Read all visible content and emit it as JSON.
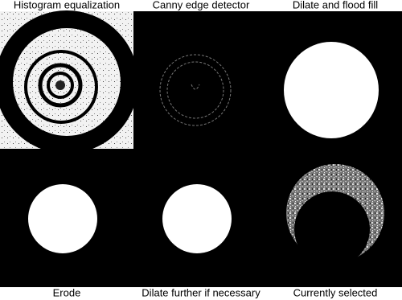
{
  "panels": [
    {
      "label": "Histogram equalization"
    },
    {
      "label": "Canny edge detector"
    },
    {
      "label": "Dilate and flood fill"
    },
    {
      "label": "Erode"
    },
    {
      "label": "Dilate further if necessary"
    },
    {
      "label": "Currently selected"
    }
  ]
}
